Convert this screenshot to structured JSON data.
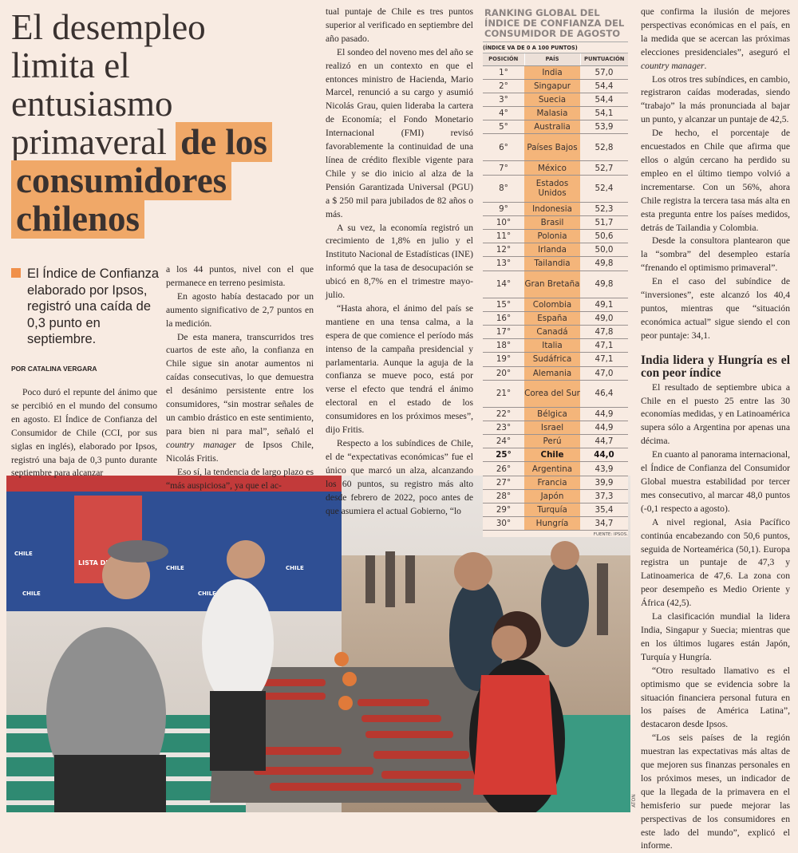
{
  "headline": {
    "light": [
      "El desempleo",
      "limita el",
      "entusiasmo",
      "primaveral"
    ],
    "highlight": [
      "de los",
      "consumidores",
      "chilenos"
    ]
  },
  "lead": "El Índice de Confianza elaborado por Ipsos, registró una caída de 0,3 punto en septiembre.",
  "byline": "POR CATALINA VERGARA",
  "columns": {
    "col1": [
      "Poco duró el repunte del ánimo que se percibió en el mundo del consumo en agosto. El Índice de Confianza del Consumidor de Chile (CCI, por sus siglas en inglés), elaborado por Ipsos, registró una baja de 0,3 punto durante septiembre para alcanzar"
    ],
    "col2": [
      "a los 44 puntos, nivel con el que permanece en terreno pesimista.",
      "En agosto había destacado por un aumento significativo de 2,7 puntos en la medición.",
      "De esta manera, transcurridos tres cuartos de este año, la confianza en Chile sigue sin anotar aumentos ni caídas consecutivas, lo que demuestra el desánimo persistente entre los consumidores, “sin mostrar señales de un cambio drástico en este sentimiento, para bien ni para mal”, señaló el country manager de Ipsos Chile, Nicolás Fritis.",
      "Eso sí, la tendencia de largo plazo es “más auspiciosa”, ya que el ac-"
    ],
    "col3": [
      "tual puntaje de Chile es tres puntos superior al verificado en septiembre del año pasado.",
      "El sondeo del noveno mes del año se realizó en un contexto en que el entonces ministro de Hacienda, Mario Marcel, renunció a su cargo y asumió Nicolás Grau, quien lideraba la cartera de Economía; el Fondo Monetario Internacional (FMI) revisó favorablemente la continuidad de una línea de crédito flexible vigente para Chile y se dio inicio al alza de la Pensión Garantizada Universal (PGU) a $ 250 mil para jubilados de 82 años o más.",
      "A su vez, la economía registró un crecimiento de 1,8% en julio y el Instituto Nacional de Estadísticas (INE) informó que la tasa de desocupación se ubicó en 8,7% en el trimestre mayo-julio.",
      "“Hasta ahora, el ánimo del país se mantiene en una tensa calma, a la espera de que comience el período más intenso de la campaña presidencial y parlamentaria. Aunque la aguja de la confianza se mueve poco, está por verse el efecto que tendrá el ánimo electoral en el estado de los consumidores en los próximos meses”, dijo Fritis.",
      "Respecto a los subíndices de Chile, el de “expectativas económicas” fue el único que marcó un alza, alcanzando los 60 puntos, su registro más alto desde febrero de 2022, poco antes de que asumiera el actual Gobierno, “lo"
    ],
    "col4": [
      "que confirma la ilusión de mejores perspectivas económicas en el país, en la medida que se acercan las próximas elecciones presidenciales”, aseguró el country manager.",
      "Los otros tres subíndices, en cambio, registraron caídas moderadas, siendo “trabajo” la más pronunciada al bajar un punto, y alcanzar un puntaje de 42,5.",
      "De hecho, el porcentaje de encuestados en Chile que afirma que ellos o algún cercano ha perdido su empleo en el último tiempo volvió a incrementarse. Con un 56%, ahora Chile registra la tercera tasa más alta en esta pregunta entre los países medidos, detrás de Tailandia y Colombia.",
      "Desde la consultora plantearon que la “sombra” del desempleo estaría “frenando el optimismo primaveral”.",
      "En el caso del subíndice de “inversiones”, este alcanzó los 40,4 puntos, mientras que “situación económica actual” sigue siendo el con peor puntaje: 34,1."
    ],
    "col4_subhead": "India lidera y Hungría es el con peor índice",
    "col4_after": [
      "El resultado de septiembre ubica a Chile en el puesto 25 entre las 30 economías medidas, y en Latinoamérica supera sólo a Argentina por apenas una décima.",
      "En cuanto al panorama internacional, el Índice de Confianza del Consumidor Global muestra estabilidad por tercer mes consecutivo, al marcar 48,0 puntos (-0,1 respecto a agosto).",
      "A nivel regional, Asia Pacífico continúa encabezando con 50,6 puntos, seguida de Norteamérica (50,1). Europa registra un puntaje de 47,3 y Latinoamerica de 47,6. La zona con peor desempeño es Medio Oriente y África (42,5).",
      "La clasificación mundial la lidera India, Singapur y Suecia; mientras que en los últimos lugares están Japón, Turquía y Hungría.",
      "“Otro resultado llamativo es el optimismo que se evidencia sobre la situación financiera personal futura en los países de América Latina”, destacaron desde Ipsos.",
      "“Los seis países de la región muestran las expectativas más altas de que mejoren sus finanzas personales en los próximos meses, un indicador de que la llegada de la primavera en el hemisferio sur puede mejorar las perspectivas de los consumidores en este lado del mundo”, explicó el informe."
    ]
  },
  "ranking": {
    "title": "RANKING GLOBAL DEL ÍNDICE DE CONFIANZA DEL CONSUMIDOR DE AGOSTO",
    "subtitle": "(ÍNDICE VA DE 0 A 100 PUNTOS)",
    "headers": [
      "POSICIÓN",
      "PAÍS",
      "PUNTUACIÓN"
    ],
    "highlight_country": "Chile",
    "rows": [
      [
        "1°",
        "India",
        "57,0"
      ],
      [
        "2°",
        "Singapur",
        "54,4"
      ],
      [
        "3°",
        "Suecia",
        "54,4"
      ],
      [
        "4°",
        "Malasia",
        "54,1"
      ],
      [
        "5°",
        "Australia",
        "53,9"
      ],
      [
        "6°",
        "Países Bajos",
        "52,8"
      ],
      [
        "7°",
        "México",
        "52,7"
      ],
      [
        "8°",
        "Estados Unidos",
        "52,4"
      ],
      [
        "9°",
        "Indonesia",
        "52,3"
      ],
      [
        "10°",
        "Brasil",
        "51,7"
      ],
      [
        "11°",
        "Polonia",
        "50,6"
      ],
      [
        "12°",
        "Irlanda",
        "50,0"
      ],
      [
        "13°",
        "Tailandia",
        "49,8"
      ],
      [
        "14°",
        "Gran Bretaña",
        "49,8"
      ],
      [
        "15°",
        "Colombia",
        "49,1"
      ],
      [
        "16°",
        "España",
        "49,0"
      ],
      [
        "17°",
        "Canadá",
        "47,8"
      ],
      [
        "18°",
        "Italia",
        "47,1"
      ],
      [
        "19°",
        "Sudáfrica",
        "47,1"
      ],
      [
        "20°",
        "Alemania",
        "47,0"
      ],
      [
        "21°",
        "Corea del Sur",
        "46,4"
      ],
      [
        "22°",
        "Bélgica",
        "44,9"
      ],
      [
        "23°",
        "Israel",
        "44,9"
      ],
      [
        "24°",
        "Perú",
        "44,7"
      ],
      [
        "25°",
        "Chile",
        "44,0"
      ],
      [
        "26°",
        "Argentina",
        "43,9"
      ],
      [
        "27°",
        "Francia",
        "39,9"
      ],
      [
        "28°",
        "Japón",
        "37,3"
      ],
      [
        "29°",
        "Turquía",
        "35,4"
      ],
      [
        "30°",
        "Hungría",
        "34,7"
      ]
    ],
    "source": "FUENTE: IPSOS."
  },
  "photo": {
    "banner_text": "LISTA DE PRECIOS",
    "sign_text": "CHILE",
    "credit": "ATON"
  },
  "colors": {
    "accent": "#f0a868",
    "background": "#f8ebe2",
    "table_country": "#f4b57a"
  }
}
